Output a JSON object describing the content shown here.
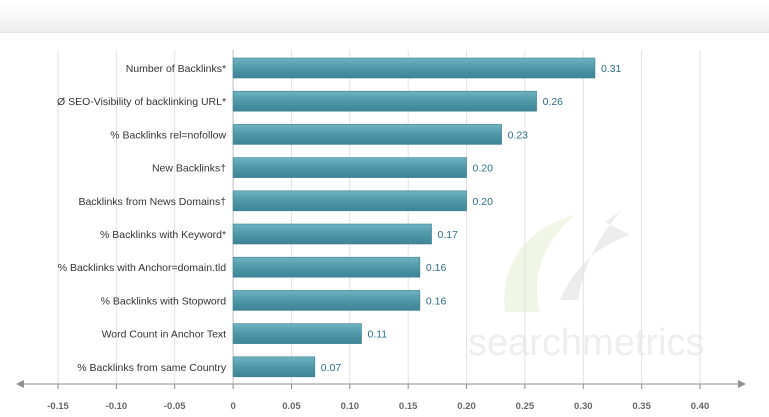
{
  "chart_data": {
    "type": "bar",
    "orientation": "horizontal",
    "categories": [
      "Number of Backlinks*",
      "Ø SEO-Visibility of backlinking URL*",
      "% Backlinks rel=nofollow",
      "New Backlinks†",
      "Backlinks from News Domains†",
      "% Backlinks with Keyword*",
      "% Backlinks with Anchor=domain.tld",
      "% Backlinks with Stopword",
      "Word Count in Anchor Text",
      "% Backlinks from same Country"
    ],
    "values": [
      0.31,
      0.26,
      0.23,
      0.2,
      0.2,
      0.17,
      0.16,
      0.16,
      0.11,
      0.07
    ],
    "value_labels": [
      "0.31",
      "0.26",
      "0.23",
      "0.20",
      "0.20",
      "0.17",
      "0.16",
      "0.16",
      "0.11",
      "0.07"
    ],
    "x_ticks": [
      "-0.15",
      "-0.10",
      "-0.05",
      "0",
      "0.05",
      "0.10",
      "0.15",
      "0.20",
      "0.25",
      "0.30",
      "0.35",
      "0.40"
    ],
    "xlim": [
      -0.15,
      0.4
    ],
    "grid": true,
    "legend": "none",
    "bar_color": "#4e98a8",
    "watermark": "searchmetrics"
  }
}
